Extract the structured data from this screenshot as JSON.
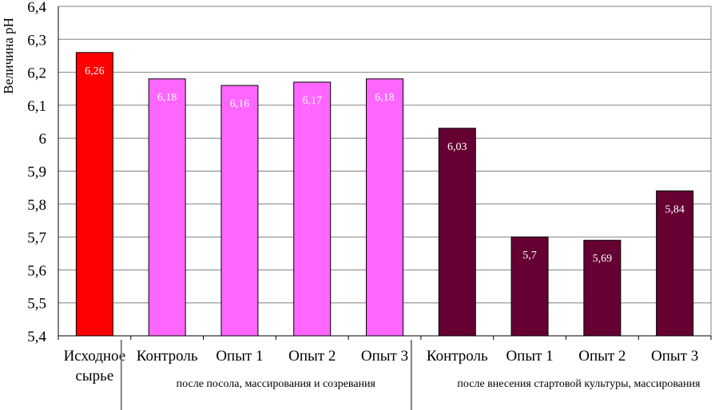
{
  "chart_data": {
    "type": "bar",
    "ylabel": "Величина pH",
    "ylim": [
      5.4,
      6.4
    ],
    "ytick_step": 0.1,
    "ytick_labels": [
      "5,4",
      "5,5",
      "5,6",
      "5,7",
      "5,8",
      "5,9",
      "6",
      "6,1",
      "6,2",
      "6,3",
      "6,4"
    ],
    "grid": true,
    "categories": [
      [
        "Исходное",
        "сырье"
      ],
      [
        "Контроль"
      ],
      [
        "Опыт 1"
      ],
      [
        "Опыт 2"
      ],
      [
        "Опыт 3"
      ],
      [
        "Контроль"
      ],
      [
        "Опыт 1"
      ],
      [
        "Опыт 2"
      ],
      [
        "Опыт 3"
      ]
    ],
    "values": [
      6.26,
      6.18,
      6.16,
      6.17,
      6.18,
      6.03,
      5.7,
      5.69,
      5.84
    ],
    "data_labels": [
      "6,26",
      "6,18",
      "6,16",
      "6,17",
      "6,18",
      "6,03",
      "5,7",
      "5,69",
      "5,84"
    ],
    "bar_colors": [
      "#ff0000",
      "#ff66ff",
      "#ff66ff",
      "#ff66ff",
      "#ff66ff",
      "#660033",
      "#660033",
      "#660033",
      "#660033"
    ],
    "groups": [
      {
        "label": "после посола, массирования и созревания",
        "from": 1,
        "to": 4
      },
      {
        "label": "после внесения стартовой культуры, массирования",
        "from": 5,
        "to": 8
      }
    ]
  }
}
